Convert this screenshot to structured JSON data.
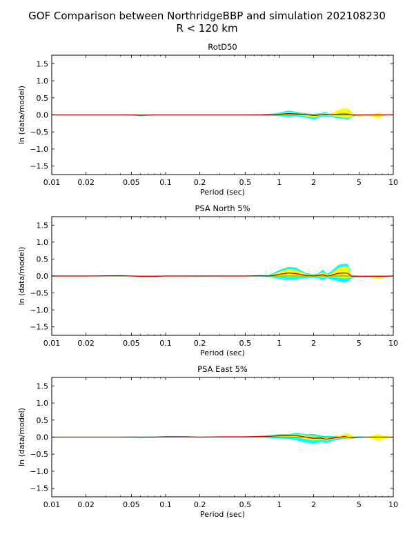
{
  "figure": {
    "title_line1": "GOF Comparison between NorthridgeBBP and simulation 202108230",
    "title_line2": "R < 120 km"
  },
  "chart_data": [
    {
      "type": "area",
      "title": "RotD50",
      "xlabel": "Period (sec)",
      "ylabel": "ln (data/model)",
      "xscale": "log",
      "xlim": [
        0.01,
        10
      ],
      "ylim": [
        -1.75,
        1.75
      ],
      "xticks": [
        0.01,
        0.02,
        0.05,
        0.1,
        0.2,
        0.5,
        1,
        2,
        5,
        10
      ],
      "xtick_labels": [
        "0.01",
        "0.02",
        "0.05",
        "0.1",
        "0.2",
        "0.5",
        "1",
        "2",
        "5",
        "10"
      ],
      "yticks": [
        -1.5,
        -1.0,
        -0.5,
        0.0,
        0.5,
        1.0,
        1.5
      ],
      "ytick_labels": [
        "−1.5",
        "−1.0",
        "−0.5",
        "0.0",
        "0.5",
        "1.0",
        "1.5"
      ],
      "colors": {
        "std_band": "#00ffff",
        "ci_band": "#ffff00",
        "bias_line": "#cc0000",
        "zero_line": "#44bb44"
      },
      "x": [
        0.01,
        0.02,
        0.04,
        0.05,
        0.06,
        0.08,
        0.1,
        0.15,
        0.2,
        0.3,
        0.5,
        0.7,
        0.9,
        1.0,
        1.2,
        1.4,
        1.7,
        2.0,
        2.3,
        2.5,
        2.8,
        3.2,
        3.7,
        4.0,
        4.5,
        5.0,
        6.0,
        7.0,
        7.5,
        8.0,
        10.0
      ],
      "bias": [
        0.0,
        0.0,
        0.0,
        0.0,
        -0.01,
        0.0,
        0.0,
        0.0,
        0.0,
        0.0,
        0.0,
        0.0,
        0.01,
        0.02,
        0.04,
        0.03,
        0.01,
        -0.02,
        0.0,
        0.02,
        0.0,
        0.02,
        0.03,
        0.02,
        -0.01,
        0.0,
        0.0,
        0.0,
        0.0,
        0.0,
        0.0
      ],
      "std_upper": [
        0.0,
        0.0,
        0.01,
        0.01,
        0.0,
        0.01,
        0.01,
        0.01,
        0.01,
        0.01,
        0.01,
        0.02,
        0.04,
        0.07,
        0.13,
        0.09,
        0.05,
        0.03,
        0.05,
        0.09,
        0.03,
        0.1,
        0.14,
        0.14,
        0.03,
        0.01,
        0.01,
        0.01,
        0.01,
        0.01,
        0.0
      ],
      "std_lower": [
        0.0,
        0.0,
        -0.01,
        -0.02,
        -0.04,
        -0.01,
        -0.01,
        -0.01,
        -0.01,
        -0.01,
        -0.01,
        -0.02,
        -0.03,
        -0.04,
        -0.05,
        -0.04,
        -0.08,
        -0.14,
        -0.06,
        -0.05,
        -0.05,
        -0.1,
        -0.12,
        -0.13,
        -0.04,
        -0.02,
        -0.01,
        -0.01,
        -0.01,
        -0.01,
        0.0
      ],
      "ci_upper": [
        0.0,
        0.0,
        0.01,
        0.0,
        0.0,
        0.0,
        0.0,
        0.0,
        0.0,
        0.0,
        0.0,
        0.01,
        0.02,
        0.04,
        0.08,
        0.05,
        0.03,
        0.01,
        0.02,
        0.05,
        0.02,
        0.14,
        0.19,
        0.2,
        0.02,
        0.0,
        0.01,
        0.04,
        0.06,
        0.03,
        0.0
      ],
      "ci_lower": [
        0.0,
        0.0,
        -0.01,
        -0.01,
        -0.02,
        0.0,
        0.0,
        0.0,
        0.0,
        0.0,
        0.0,
        -0.01,
        -0.01,
        -0.01,
        -0.01,
        -0.01,
        -0.04,
        -0.07,
        -0.03,
        -0.02,
        -0.03,
        -0.05,
        -0.08,
        -0.09,
        -0.03,
        -0.05,
        -0.02,
        -0.08,
        -0.1,
        -0.04,
        0.0
      ]
    },
    {
      "type": "area",
      "title": "PSA North 5%",
      "xlabel": "Period (sec)",
      "ylabel": "ln (data/model)",
      "xscale": "log",
      "xlim": [
        0.01,
        10
      ],
      "ylim": [
        -1.75,
        1.75
      ],
      "xticks": [
        0.01,
        0.02,
        0.05,
        0.1,
        0.2,
        0.5,
        1,
        2,
        5,
        10
      ],
      "xtick_labels": [
        "0.01",
        "0.02",
        "0.05",
        "0.1",
        "0.2",
        "0.5",
        "1",
        "2",
        "5",
        "10"
      ],
      "yticks": [
        -1.5,
        -1.0,
        -0.5,
        0.0,
        0.5,
        1.0,
        1.5
      ],
      "ytick_labels": [
        "−1.5",
        "−1.0",
        "−0.5",
        "0.0",
        "0.5",
        "1.0",
        "1.5"
      ],
      "colors": {
        "std_band": "#00ffff",
        "ci_band": "#ffff00",
        "bias_line": "#cc0000",
        "zero_line": "#44bb44"
      },
      "x": [
        0.01,
        0.02,
        0.04,
        0.05,
        0.06,
        0.08,
        0.1,
        0.15,
        0.2,
        0.3,
        0.5,
        0.7,
        0.8,
        0.9,
        1.0,
        1.2,
        1.4,
        1.7,
        2.0,
        2.2,
        2.4,
        2.6,
        2.9,
        3.3,
        3.7,
        4.0,
        4.3,
        5.0,
        6.0,
        7.0,
        7.5,
        8.0,
        10.0
      ],
      "bias": [
        0.0,
        0.0,
        0.01,
        0.0,
        -0.01,
        -0.01,
        0.0,
        0.0,
        0.0,
        0.0,
        0.0,
        0.01,
        0.0,
        0.02,
        0.05,
        0.09,
        0.07,
        0.02,
        0.0,
        0.02,
        0.04,
        0.0,
        0.03,
        0.08,
        0.09,
        0.08,
        -0.01,
        -0.02,
        -0.01,
        -0.01,
        -0.01,
        -0.01,
        0.0
      ],
      "std_upper": [
        0.0,
        0.0,
        0.01,
        0.01,
        0.0,
        0.0,
        0.01,
        0.01,
        0.01,
        0.01,
        0.01,
        0.02,
        0.03,
        0.1,
        0.18,
        0.27,
        0.25,
        0.09,
        0.05,
        0.08,
        0.19,
        0.06,
        0.16,
        0.33,
        0.36,
        0.35,
        0.03,
        0.01,
        0.01,
        0.01,
        0.01,
        0.01,
        0.0
      ],
      "std_lower": [
        0.0,
        0.0,
        -0.01,
        -0.01,
        -0.04,
        -0.03,
        -0.01,
        -0.01,
        -0.02,
        -0.01,
        -0.01,
        -0.02,
        -0.03,
        -0.06,
        -0.09,
        -0.12,
        -0.1,
        -0.06,
        -0.05,
        -0.07,
        -0.13,
        -0.06,
        -0.11,
        -0.16,
        -0.18,
        -0.17,
        -0.06,
        -0.03,
        -0.02,
        -0.03,
        -0.03,
        -0.02,
        0.0
      ],
      "ci_upper": [
        0.0,
        0.0,
        0.02,
        0.01,
        0.0,
        0.0,
        0.0,
        0.0,
        0.0,
        0.0,
        0.0,
        0.01,
        0.01,
        0.06,
        0.13,
        0.2,
        0.18,
        0.06,
        0.02,
        0.05,
        0.12,
        0.03,
        0.1,
        0.24,
        0.28,
        0.27,
        0.01,
        0.0,
        0.0,
        0.0,
        0.01,
        0.0,
        0.0
      ],
      "ci_lower": [
        0.0,
        0.0,
        0.0,
        -0.01,
        -0.03,
        -0.02,
        0.0,
        0.0,
        -0.01,
        0.0,
        0.0,
        -0.01,
        -0.01,
        -0.02,
        -0.03,
        -0.04,
        -0.03,
        -0.02,
        -0.02,
        -0.03,
        -0.05,
        -0.02,
        -0.03,
        -0.05,
        -0.06,
        -0.06,
        -0.04,
        -0.04,
        -0.03,
        -0.07,
        -0.09,
        -0.05,
        0.0
      ]
    },
    {
      "type": "area",
      "title": "PSA East 5%",
      "xlabel": "Period (sec)",
      "ylabel": "ln (data/model)",
      "xscale": "log",
      "xlim": [
        0.01,
        10
      ],
      "ylim": [
        -1.75,
        1.75
      ],
      "xticks": [
        0.01,
        0.02,
        0.05,
        0.1,
        0.2,
        0.5,
        1,
        2,
        5,
        10
      ],
      "xtick_labels": [
        "0.01",
        "0.02",
        "0.05",
        "0.1",
        "0.2",
        "0.5",
        "1",
        "2",
        "5",
        "10"
      ],
      "yticks": [
        -1.5,
        -1.0,
        -0.5,
        0.0,
        0.5,
        1.0,
        1.5
      ],
      "ytick_labels": [
        "−1.5",
        "−1.0",
        "−0.5",
        "0.0",
        "0.5",
        "1.0",
        "1.5"
      ],
      "colors": {
        "std_band": "#00ffff",
        "ci_band": "#ffff00",
        "bias_line": "#cc0000",
        "zero_line": "#44bb44"
      },
      "x": [
        0.01,
        0.02,
        0.04,
        0.05,
        0.06,
        0.08,
        0.1,
        0.15,
        0.2,
        0.3,
        0.5,
        0.7,
        0.8,
        0.9,
        1.0,
        1.2,
        1.4,
        1.7,
        2.0,
        2.3,
        2.6,
        2.9,
        3.3,
        3.7,
        4.0,
        4.5,
        5.0,
        6.0,
        7.0,
        7.5,
        8.0,
        10.0
      ],
      "bias": [
        0.0,
        0.0,
        0.0,
        0.0,
        0.0,
        0.0,
        0.01,
        0.01,
        0.0,
        0.01,
        0.01,
        0.02,
        0.02,
        0.03,
        0.04,
        0.04,
        0.05,
        0.0,
        -0.04,
        -0.03,
        -0.06,
        -0.03,
        -0.01,
        0.02,
        0.0,
        -0.01,
        0.0,
        0.0,
        0.0,
        0.0,
        0.0,
        0.0
      ],
      "std_upper": [
        0.0,
        0.0,
        0.01,
        0.02,
        0.01,
        0.02,
        0.03,
        0.03,
        0.01,
        0.02,
        0.02,
        0.04,
        0.06,
        0.07,
        0.09,
        0.09,
        0.12,
        0.09,
        0.09,
        0.05,
        0.03,
        0.03,
        0.04,
        0.06,
        0.05,
        0.02,
        0.02,
        0.01,
        0.02,
        0.02,
        0.01,
        0.0
      ],
      "std_lower": [
        0.0,
        0.0,
        -0.01,
        -0.01,
        -0.02,
        -0.01,
        -0.01,
        -0.01,
        -0.01,
        -0.01,
        -0.01,
        -0.01,
        -0.02,
        -0.03,
        -0.04,
        -0.05,
        -0.09,
        -0.16,
        -0.2,
        -0.14,
        -0.17,
        -0.12,
        -0.07,
        -0.04,
        -0.06,
        -0.04,
        -0.02,
        -0.01,
        -0.02,
        -0.02,
        -0.01,
        0.0
      ],
      "ci_upper": [
        0.0,
        0.0,
        0.01,
        0.01,
        0.0,
        0.01,
        0.02,
        0.02,
        0.0,
        0.01,
        0.01,
        0.03,
        0.04,
        0.05,
        0.06,
        0.06,
        0.08,
        0.05,
        0.03,
        0.01,
        0.0,
        0.01,
        0.03,
        0.09,
        0.12,
        0.02,
        0.01,
        0.01,
        0.07,
        0.1,
        0.05,
        0.0
      ],
      "ci_lower": [
        0.0,
        0.0,
        -0.01,
        -0.01,
        -0.01,
        0.0,
        0.0,
        0.0,
        0.0,
        0.0,
        0.0,
        0.0,
        0.0,
        0.0,
        0.01,
        0.01,
        0.0,
        -0.06,
        -0.1,
        -0.07,
        -0.1,
        -0.06,
        -0.03,
        -0.02,
        -0.04,
        -0.02,
        -0.01,
        -0.01,
        -0.08,
        -0.12,
        -0.06,
        0.0
      ]
    }
  ]
}
